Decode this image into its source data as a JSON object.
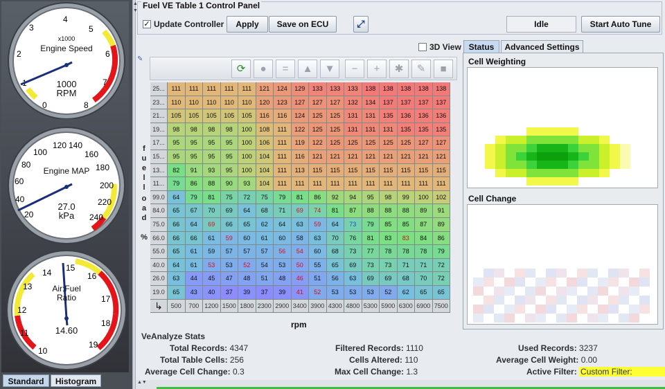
{
  "gauges": [
    {
      "name": "rpm",
      "title": "Engine Speed",
      "scale": "x1000",
      "unit": "RPM",
      "value": "1000",
      "ticks": [
        "0",
        "1",
        "2",
        "3",
        "4",
        "5",
        "6",
        "7",
        "8"
      ]
    },
    {
      "name": "map",
      "title": "Engine MAP",
      "unit": "kPa",
      "value": "27.0",
      "ticks": [
        "0",
        "20",
        "40",
        "60",
        "80",
        "100",
        "120",
        "140",
        "160",
        "180",
        "200",
        "220",
        "240"
      ]
    },
    {
      "name": "afr",
      "title": "Air:Fuel Ratio",
      "unit": "",
      "value": "14.60",
      "ticks": [
        "10",
        "11",
        "12",
        "13",
        "14",
        "15",
        "16",
        "17",
        "18",
        "19"
      ]
    }
  ],
  "gauge_tabs": [
    "Standard",
    "Histogram"
  ],
  "control_panel": {
    "title": "Fuel VE Table 1 Control Panel",
    "update_controller": "Update Controller",
    "apply": "Apply",
    "save_on_ecu": "Save on ECU",
    "status": "Idle",
    "start_auto_tune": "Start Auto Tune"
  },
  "view3d": "3D View",
  "right_tabs": [
    "Status",
    "Advanced Settings"
  ],
  "panels": {
    "cell_weighting": "Cell Weighting",
    "cell_change": "Cell Change"
  },
  "axis": {
    "x_label": "rpm",
    "y_label": [
      "f",
      "u",
      "e",
      "l",
      "l",
      "o",
      "a",
      "d",
      "%"
    ]
  },
  "ve_table": {
    "y_bins": [
      "25...",
      "23...",
      "21...",
      "19...",
      "17...",
      "15...",
      "13...",
      "11...",
      "99.0",
      "84.0",
      "75.0",
      "66.0",
      "55.0",
      "40.0",
      "26.0",
      "19.0"
    ],
    "x_bins": [
      "500",
      "700",
      "1200",
      "1500",
      "1800",
      "2300",
      "2900",
      "3400",
      "3900",
      "4300",
      "4800",
      "5300",
      "5900",
      "6300",
      "6900",
      "7500"
    ],
    "rows": [
      [
        111,
        111,
        111,
        111,
        111,
        121,
        124,
        129,
        133,
        133,
        133,
        138,
        138,
        138,
        138,
        138
      ],
      [
        110,
        110,
        110,
        110,
        110,
        120,
        123,
        127,
        127,
        127,
        132,
        134,
        137,
        137,
        137,
        137
      ],
      [
        105,
        105,
        105,
        105,
        105,
        116,
        116,
        124,
        125,
        125,
        131,
        131,
        135,
        136,
        136,
        136
      ],
      [
        98,
        98,
        98,
        98,
        100,
        108,
        111,
        122,
        125,
        125,
        131,
        131,
        131,
        135,
        135,
        135
      ],
      [
        95,
        95,
        95,
        95,
        100,
        106,
        111,
        119,
        122,
        125,
        125,
        125,
        125,
        125,
        127,
        127
      ],
      [
        95,
        95,
        95,
        95,
        100,
        104,
        111,
        116,
        121,
        121,
        121,
        121,
        121,
        121,
        121,
        121
      ],
      [
        82,
        91,
        93,
        95,
        100,
        104,
        111,
        113,
        115,
        115,
        115,
        115,
        115,
        115,
        115,
        115
      ],
      [
        79,
        86,
        88,
        90,
        93,
        104,
        111,
        111,
        111,
        111,
        111,
        111,
        111,
        111,
        111,
        111
      ],
      [
        64,
        79,
        81,
        75,
        72,
        75,
        79,
        81,
        86,
        92,
        94,
        95,
        98,
        99,
        100,
        102
      ],
      [
        65,
        67,
        70,
        69,
        64,
        68,
        71,
        69,
        74,
        81,
        87,
        88,
        88,
        88,
        89,
        91
      ],
      [
        66,
        64,
        69,
        66,
        65,
        62,
        64,
        63,
        59,
        64,
        73,
        79,
        85,
        85,
        87,
        89
      ],
      [
        66,
        66,
        61,
        59,
        60,
        61,
        60,
        58,
        63,
        70,
        76,
        81,
        83,
        83,
        84,
        86
      ],
      [
        65,
        61,
        59,
        57,
        57,
        57,
        56,
        54,
        60,
        68,
        73,
        77,
        78,
        78,
        78,
        79
      ],
      [
        64,
        61,
        53,
        53,
        52,
        54,
        53,
        50,
        55,
        65,
        69,
        73,
        73,
        71,
        71,
        72
      ],
      [
        63,
        44,
        45,
        47,
        48,
        51,
        48,
        46,
        51,
        56,
        63,
        69,
        69,
        68,
        70,
        72
      ],
      [
        65,
        43,
        40,
        37,
        39,
        37,
        39,
        41,
        52,
        53,
        53,
        53,
        52,
        62,
        65,
        65
      ]
    ],
    "red_cells": [
      [
        10,
        2
      ],
      [
        9,
        7
      ],
      [
        10,
        8
      ],
      [
        11,
        3
      ],
      [
        12,
        6
      ],
      [
        12,
        7
      ],
      [
        13,
        2
      ],
      [
        13,
        4
      ],
      [
        13,
        7
      ],
      [
        14,
        7
      ],
      [
        15,
        7
      ],
      [
        15,
        8
      ],
      [
        9,
        8
      ],
      [
        11,
        13
      ]
    ],
    "blue_cells": [
      [
        10,
        10
      ]
    ]
  },
  "stats": {
    "title": "VeAnalyze Stats",
    "total_records_label": "Total Records:",
    "total_records": "4347",
    "filtered_records_label": "Filtered Records:",
    "filtered_records": "1110",
    "used_records_label": "Used Records:",
    "used_records": "3237",
    "total_cells_label": "Total Table Cells:",
    "total_cells": "256",
    "cells_altered_label": "Cells Altered:",
    "cells_altered": "110",
    "avg_weight_label": "Average Cell Weight:",
    "avg_weight": "0.00",
    "avg_change_label": "Average Cell Change:",
    "avg_change": "0.3",
    "max_change_label": "Max Cell Change:",
    "max_change": "1.3",
    "active_filter_label": "Active Filter:",
    "active_filter": "Custom Filter:"
  },
  "colors": {
    "filter_highlight": "#ffff33",
    "gauge_red": "#e3151a",
    "gauge_yellow": "#f2ea36",
    "needle": "#1a2f7a"
  }
}
